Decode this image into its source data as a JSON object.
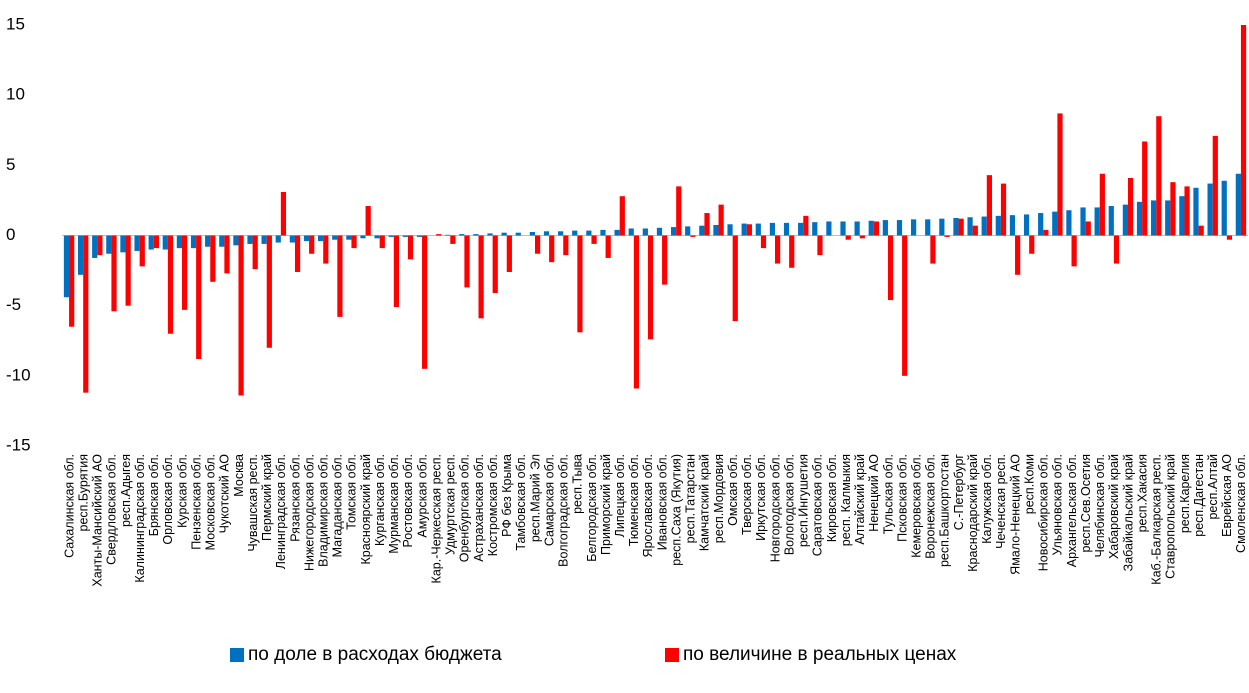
{
  "chart_data": {
    "type": "bar",
    "categories": [
      "Сахалинская обл.",
      "респ.Бурятия",
      "Ханты-Мансийский АО",
      "Свердловская обл.",
      "респ.Адыгея",
      "Калининградская обл.",
      "Брянская обл.",
      "Орловская обл.",
      "Курская обл.",
      "Пензенская обл.",
      "Московская обл.",
      "Чукотский АО",
      "Москва",
      "Чувашская респ.",
      "Пермский край",
      "Ленинградская обл.",
      "Рязанская обл.",
      "Нижегородская обл.",
      "Владимирская обл.",
      "Магаданская обл.",
      "Томская обл.",
      "Красноярский край",
      "Курганская обл.",
      "Мурманская обл.",
      "Ростовская обл.",
      "Амурская обл.",
      "Кар.-Черкесская респ.",
      "Удмуртская респ.",
      "Оренбургская обл.",
      "Астраханская обл.",
      "Костромская обл.",
      "РФ без Крыма",
      "Тамбовская обл.",
      "респ.Марий Эл",
      "Самарская обл.",
      "Волгоградская обл.",
      "респ.Тыва",
      "Белгородская обл.",
      "Приморский край",
      "Липецкая обл.",
      "Тюменская обл.",
      "Ярославская обл.",
      "Ивановская обл.",
      "респ.Саха (Якутия)",
      "респ.Татарстан",
      "Камчатский край",
      "респ.Мордовия",
      "Омская обл.",
      "Тверская обл.",
      "Иркутская обл.",
      "Новгородская обл.",
      "Вологодская обл.",
      "респ.Ингушетия",
      "Саратовская обл.",
      "Кировская обл.",
      "респ. Калмыкия",
      "Алтайский край",
      "Ненецкий АО",
      "Тульская обл.",
      "Псковская обл.",
      "Кемеровская обл.",
      "Воронежская обл.",
      "респ.Башкортостан",
      "С.-Петербург",
      "Краснодарский край",
      "Калужская обл.",
      "Чеченская респ.",
      "Ямало-Ненецкий АО",
      "респ.Коми",
      "Новосибирская обл.",
      "Ульяновская обл.",
      "Архангельская обл.",
      "респ.Сев.Осетия",
      "Челябинская обл.",
      "Хабаровский край",
      "Забайкальский край",
      "респ.Хакасия",
      "Каб.-Балкарская респ.",
      "Ставропольский край",
      "респ.Карелия",
      "респ.Дагестан",
      "респ.Алтай",
      "Еврейская АО",
      "Смоленская обл."
    ],
    "series": [
      {
        "name": "по доле в расходах бюджета",
        "color": "#0070c0",
        "values": [
          -4.4,
          -2.8,
          -1.6,
          -1.3,
          -1.2,
          -1.1,
          -1.0,
          -1.0,
          -0.9,
          -0.9,
          -0.8,
          -0.8,
          -0.7,
          -0.6,
          -0.6,
          -0.5,
          -0.5,
          -0.4,
          -0.4,
          -0.3,
          -0.3,
          -0.2,
          -0.2,
          -0.1,
          -0.1,
          -0.1,
          0,
          0.05,
          0.1,
          0.1,
          0.15,
          0.2,
          0.2,
          0.25,
          0.3,
          0.3,
          0.35,
          0.35,
          0.4,
          0.4,
          0.5,
          0.5,
          0.55,
          0.6,
          0.65,
          0.7,
          0.75,
          0.8,
          0.85,
          0.85,
          0.9,
          0.9,
          0.9,
          0.95,
          1.0,
          1.0,
          1.0,
          1.05,
          1.1,
          1.1,
          1.15,
          1.15,
          1.2,
          1.25,
          1.3,
          1.35,
          1.4,
          1.45,
          1.5,
          1.6,
          1.7,
          1.8,
          2.0,
          2.0,
          2.1,
          2.2,
          2.4,
          2.5,
          2.5,
          2.8,
          3.4,
          3.7,
          3.9,
          4.4
        ]
      },
      {
        "name": "по величине в реальных ценах",
        "color": "#ff0000",
        "values": [
          -6.5,
          -11.2,
          -1.4,
          -5.4,
          -5.0,
          -2.2,
          -0.9,
          -7.0,
          -5.3,
          -8.8,
          -3.3,
          -2.7,
          -11.4,
          -2.4,
          -8.0,
          3.1,
          -2.6,
          -1.3,
          -2.0,
          -5.8,
          -0.9,
          2.1,
          -0.9,
          -5.1,
          -1.7,
          -9.5,
          0.1,
          -0.6,
          -3.7,
          -5.9,
          -4.1,
          -2.6,
          0,
          -1.3,
          -1.9,
          -1.4,
          -6.9,
          -0.6,
          -1.6,
          2.8,
          -10.9,
          -7.4,
          -3.5,
          3.5,
          -0.1,
          1.6,
          2.2,
          -6.1,
          0.8,
          -0.9,
          -2.0,
          -2.3,
          1.4,
          -1.4,
          0,
          -0.3,
          -0.2,
          1.0,
          -4.6,
          -10.0,
          0,
          -2.0,
          -0.1,
          1.2,
          0.7,
          4.3,
          3.7,
          -2.8,
          -1.3,
          0.4,
          8.7,
          -2.2,
          1.0,
          4.4,
          -2.0,
          4.1,
          6.7,
          8.5,
          3.8,
          3.5,
          0.7,
          7.1,
          -0.3,
          15
        ]
      }
    ],
    "ylim": [
      -15,
      15
    ],
    "yticks": [
      -15,
      -10,
      -5,
      0,
      5,
      10,
      15
    ],
    "legend": "bottom"
  }
}
